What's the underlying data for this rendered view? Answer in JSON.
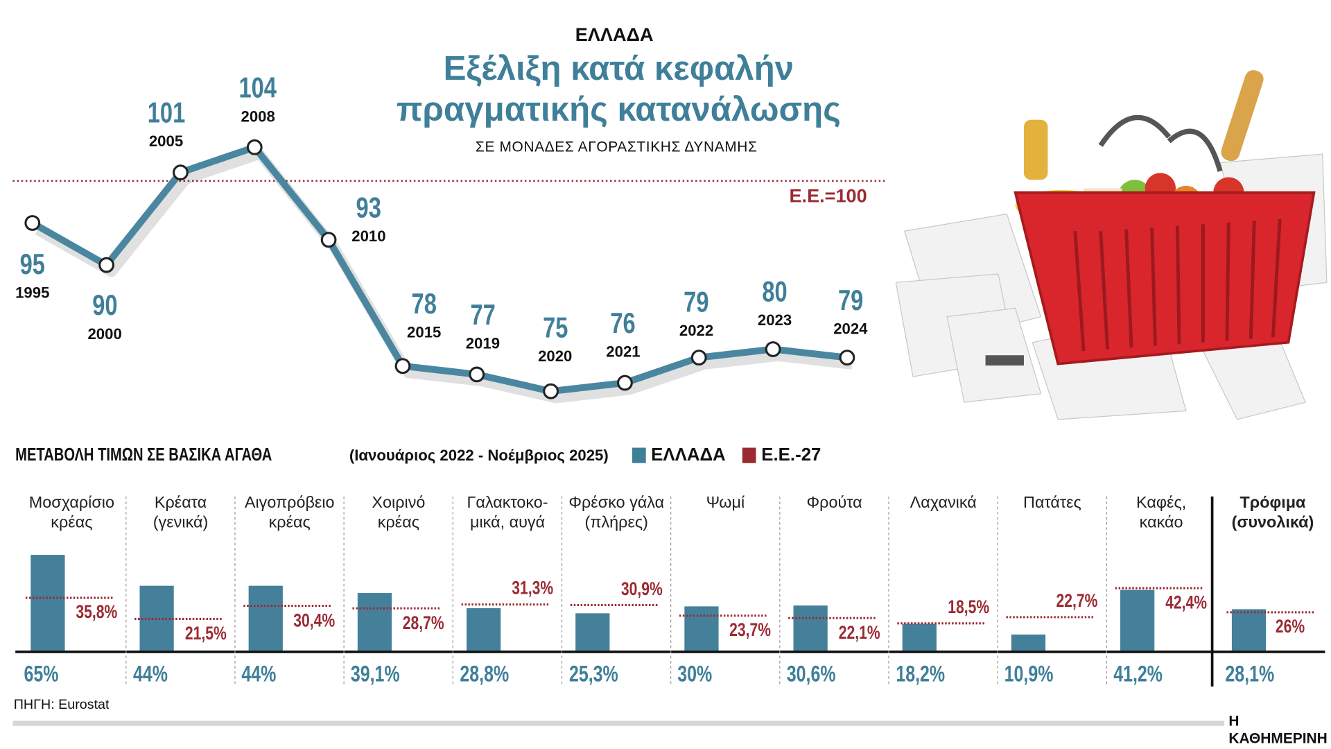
{
  "header": {
    "country": "ΕΛΛΑΔΑ",
    "title_line1": "Εξέλιξη κατά κεφαλήν",
    "title_line2": "πραγματικής κατανάλωσης",
    "subtitle": "ΣΕ ΜΟΝΑΔΕΣ ΑΓΟΡΑΣΤΙΚΗΣ ΔΥΝΑΜΗΣ"
  },
  "colors": {
    "greece": "#3f7f99",
    "eu": "#9b2a33"
  },
  "chart_data": [
    {
      "type": "line",
      "title": "Εξέλιξη κατά κεφαλήν πραγματικής κατανάλωσης",
      "subtitle": "ΣΕ ΜΟΝΑΔΕΣ ΑΓΟΡΑΣΤΙΚΗΣ ΔΥΝΑΜΗΣ",
      "x": [
        "1995",
        "2000",
        "2005",
        "2008",
        "2010",
        "2015",
        "2019",
        "2020",
        "2021",
        "2022",
        "2023",
        "2024"
      ],
      "values": [
        95,
        90,
        101,
        104,
        93,
        78,
        77,
        75,
        76,
        79,
        80,
        79
      ],
      "reference": {
        "label": "Ε.Ε.=100",
        "value": 100
      },
      "ylim": [
        75,
        104
      ]
    },
    {
      "type": "bar",
      "title": "ΜΕΤΑΒΟΛΗ ΤΙΜΩΝ ΣΕ ΒΑΣΙΚΑ ΑΓΑΘΑ",
      "subtitle": "(Ιανουάριος 2022 - Νοέμβριος 2025)",
      "legend": [
        "ΕΛΛΑΔΑ",
        "Ε.Ε.-27"
      ],
      "categories": [
        [
          "Μοσχαρίσιο",
          "κρέας"
        ],
        [
          "Κρέατα",
          "(γενικά)"
        ],
        [
          "Αιγοπρόβειο",
          "κρέας"
        ],
        [
          "Χοιρινό",
          "κρέας"
        ],
        [
          "Γαλακτοκο-",
          "μικά, αυγά"
        ],
        [
          "Φρέσκο γάλα",
          "(πλήρες)"
        ],
        [
          "Ψωμί",
          ""
        ],
        [
          "Φρούτα",
          ""
        ],
        [
          "Λαχανικά",
          ""
        ],
        [
          "Πατάτες",
          ""
        ],
        [
          "Καφές,",
          "κακάο"
        ],
        [
          "Τρόφιμα",
          "(συνολικά)"
        ]
      ],
      "series": [
        {
          "name": "ΕΛΛΑΔΑ",
          "values": [
            65,
            44,
            44,
            39.1,
            28.8,
            25.3,
            30,
            30.6,
            18.2,
            10.9,
            41.2,
            28.1
          ],
          "labels": [
            "65%",
            "44%",
            "44%",
            "39,1%",
            "28,8%",
            "25,3%",
            "30%",
            "30,6%",
            "18,2%",
            "10,9%",
            "41,2%",
            "28,1%"
          ]
        },
        {
          "name": "Ε.Ε.-27",
          "values": [
            35.8,
            21.5,
            30.4,
            28.7,
            31.3,
            30.9,
            23.7,
            22.1,
            18.5,
            22.7,
            42.4,
            26
          ],
          "labels": [
            "35,8%",
            "21,5%",
            "30,4%",
            "28,7%",
            "31,3%",
            "30,9%",
            "23,7%",
            "22,1%",
            "18,5%",
            "22,7%",
            "42,4%",
            "26%"
          ]
        }
      ],
      "unit": "%"
    }
  ],
  "footer": {
    "source": "ΠΗΓΗ: Eurostat",
    "brand": "Η ΚΑΘΗΜΕΡΙΝΗ"
  }
}
